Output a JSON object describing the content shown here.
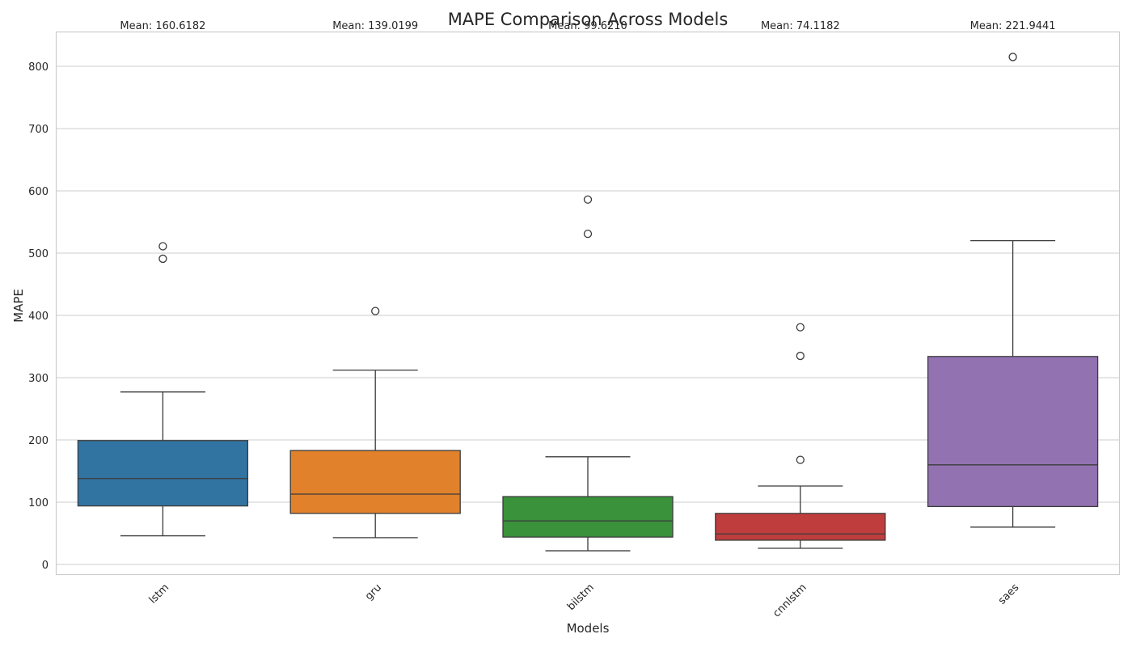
{
  "chart_data": {
    "type": "box",
    "title": "MAPE Comparison Across Models",
    "xlabel": "Models",
    "ylabel": "MAPE",
    "ylim": [
      -15,
      855
    ],
    "yticks": [
      0,
      100,
      200,
      300,
      400,
      500,
      600,
      700,
      800
    ],
    "grid": true,
    "categories": [
      "lstm",
      "gru",
      "bilstm",
      "cnnlstm",
      "saes"
    ],
    "colors": [
      "#3274a1",
      "#e1812c",
      "#3a923a",
      "#c03d3e",
      "#9372b2"
    ],
    "boxes": [
      {
        "category": "lstm",
        "whisker_low": 46,
        "q1": 94,
        "median": 138,
        "q3": 199,
        "whisker_high": 277,
        "outliers": [
          491,
          511
        ]
      },
      {
        "category": "gru",
        "whisker_low": 43,
        "q1": 82,
        "median": 113,
        "q3": 183,
        "whisker_high": 312,
        "outliers": [
          407
        ]
      },
      {
        "category": "bilstm",
        "whisker_low": 22,
        "q1": 44,
        "median": 70,
        "q3": 109,
        "whisker_high": 173,
        "outliers": [
          531,
          586
        ]
      },
      {
        "category": "cnnlstm",
        "whisker_low": 26,
        "q1": 39,
        "median": 49,
        "q3": 82,
        "whisker_high": 126,
        "outliers": [
          168,
          335,
          381
        ]
      },
      {
        "category": "saes",
        "whisker_low": 60,
        "q1": 93,
        "median": 160,
        "q3": 334,
        "whisker_high": 520,
        "outliers": [
          815
        ]
      }
    ],
    "annotations": [
      "Mean: 160.6182",
      "Mean: 139.0199",
      "Mean: 99.6210",
      "Mean: 74.1182",
      "Mean: 221.9441"
    ]
  }
}
